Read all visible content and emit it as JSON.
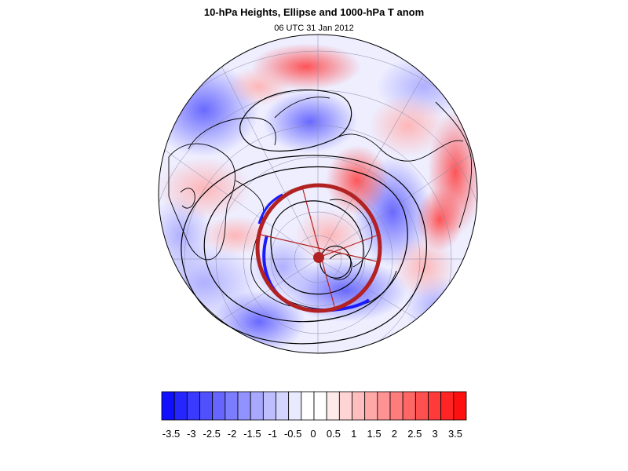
{
  "header": {
    "title": "10-hPa Heights, Ellipse and 1000-hPa T anom",
    "subtitle": "06 UTC 31 Jan 2012"
  },
  "colors": {
    "ellipse": "#b22222",
    "ellipse_center": "#b22222",
    "map_outline": "#000000",
    "graticule": "#8888aa"
  },
  "colorbar": {
    "tick_labels": [
      "-3.5",
      "-3",
      "-2.5",
      "-2",
      "-1.5",
      "-1",
      "-0.5",
      "0",
      "0.5",
      "1",
      "1.5",
      "2",
      "2.5",
      "3",
      "3.5"
    ],
    "colors": [
      "#1010ff",
      "#2525ff",
      "#3a3aff",
      "#5050ff",
      "#6666ff",
      "#7c7cff",
      "#9292ff",
      "#a8a8ff",
      "#bebeff",
      "#d4d4ff",
      "#eaeaff",
      "#ffffff",
      "#ffffff",
      "#ffeaea",
      "#ffd4d4",
      "#ffbebe",
      "#ffa8a8",
      "#ff9292",
      "#ff7c7c",
      "#ff6666",
      "#ff5050",
      "#ff3a3a",
      "#ff2525",
      "#ff1010"
    ]
  }
}
